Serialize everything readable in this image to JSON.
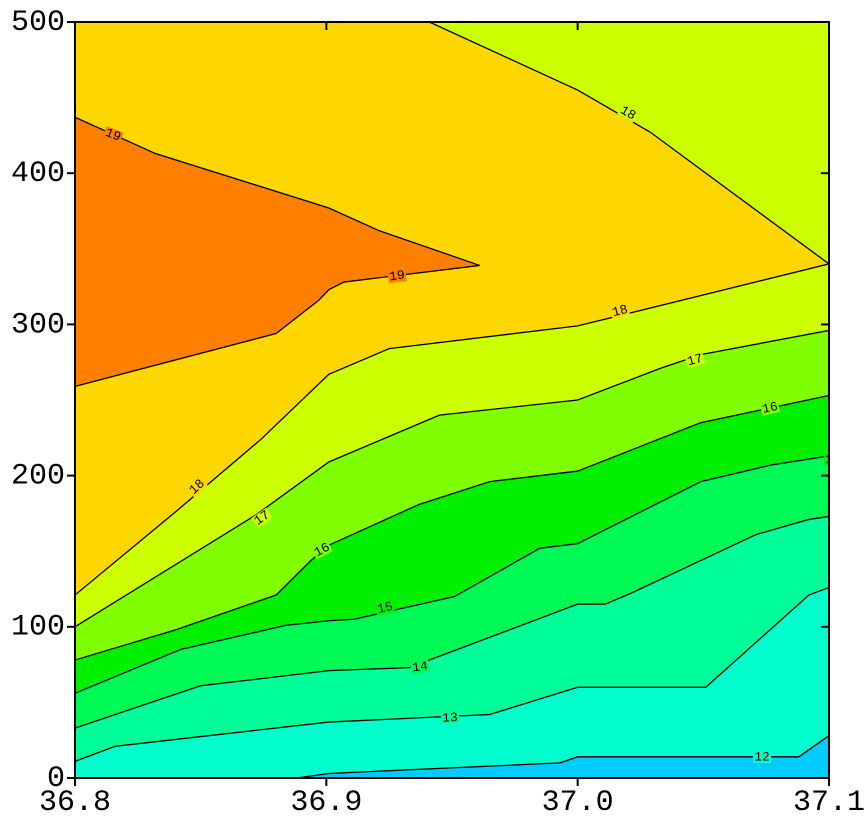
{
  "chart_data": {
    "type": "contour",
    "xlim": [
      36.8,
      37.1
    ],
    "ylim": [
      0,
      500
    ],
    "xticks": [
      36.8,
      36.9,
      {
        "value": 37,
        "label": "37.0"
      },
      37.1
    ],
    "yticks": [
      0,
      100,
      200,
      300,
      400,
      500
    ],
    "base_color": "#00CCFF",
    "line_color": "#000000",
    "contours": [
      {
        "level": 12,
        "fill": "#00FFCC",
        "x": [
          36.888,
          36.901,
          36.993,
          37.0,
          37.088,
          37.1
        ],
        "y": [
          0,
          3,
          10,
          14,
          14,
          28
        ]
      },
      {
        "level": 13,
        "fill": "#00FF99",
        "x": [
          36.8,
          36.816,
          36.901,
          36.965,
          37.0,
          37.051,
          37.092,
          37.1
        ],
        "y": [
          11,
          21,
          37,
          42,
          60,
          60,
          121,
          126
        ]
      },
      {
        "level": 14,
        "fill": "#00FA55",
        "x": [
          36.8,
          36.85,
          36.901,
          36.933,
          37.0,
          37.011,
          37.021,
          37.071,
          37.092,
          37.1
        ],
        "y": [
          33,
          61,
          71,
          73,
          115,
          115,
          122,
          161,
          171,
          173
        ]
      },
      {
        "level": 15,
        "fill": "#00F000",
        "x": [
          36.8,
          36.842,
          36.884,
          36.901,
          36.911,
          36.951,
          36.985,
          37.0,
          37.049,
          37.077,
          37.1
        ],
        "y": [
          56,
          85,
          101,
          104,
          105,
          120,
          152,
          155,
          196,
          207,
          213
        ]
      },
      {
        "level": 16,
        "fill": "#7FFF00",
        "x": [
          36.8,
          36.84,
          36.88,
          36.894,
          36.901,
          36.937,
          36.965,
          37.0,
          37.049,
          37.1
        ],
        "y": [
          78,
          98,
          121,
          144,
          154,
          181,
          196,
          203,
          235,
          253
        ]
      },
      {
        "level": 17,
        "fill": "#CCFF00",
        "x": [
          36.8,
          36.872,
          36.901,
          36.945,
          37.0,
          37.033,
          37.049,
          37.1
        ],
        "y": [
          100,
          174,
          209,
          240,
          250,
          271,
          280,
          296
        ]
      },
      {
        "level": 18,
        "fill": "#FFD700",
        "x": [
          36.8,
          36.84,
          36.874,
          36.901,
          36.925,
          37.0,
          37.1
        ],
        "y": [
          121,
          176,
          224,
          267,
          284,
          299,
          340
        ]
      },
      {
        "level": 18,
        "fill": "#CCFF00",
        "x": [
          36.941,
          37.0,
          37.029,
          37.1
        ],
        "y": [
          500,
          455,
          427,
          340
        ]
      },
      {
        "level": 19,
        "fill": "#FF8000",
        "x": [
          36.8,
          36.832,
          36.901,
          36.921,
          36.961,
          36.907,
          36.901,
          36.897,
          36.88,
          36.8
        ],
        "y": [
          437,
          413,
          377,
          362,
          339,
          328,
          323,
          316,
          294,
          259
        ]
      }
    ]
  }
}
